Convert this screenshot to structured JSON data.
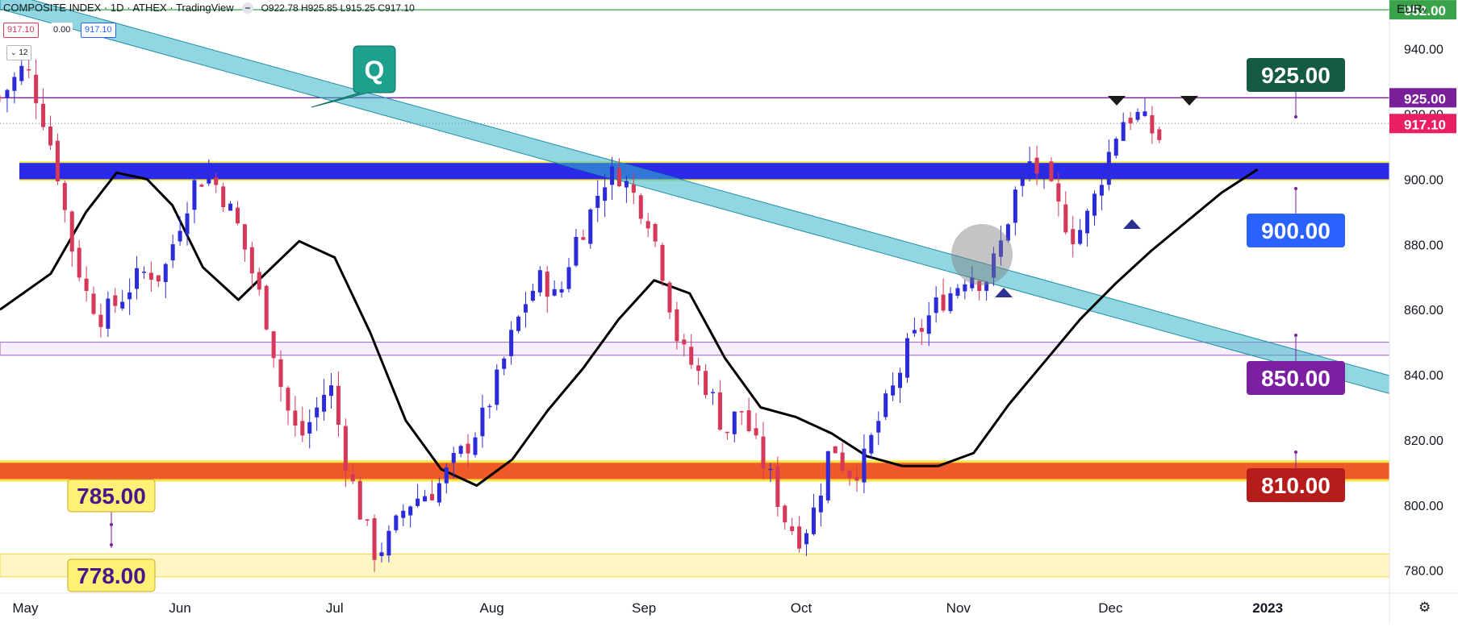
{
  "header": {
    "symbol": "COMPOSITE INDEX · 1D · ATHEX · TradingView",
    "ohlc": "O922.78 H925.85 L915.25 C917.10",
    "tag_left": "917.10",
    "tag_mid": "0.00",
    "tag_right": "917.10",
    "interval_badge": "12",
    "currency": "EUR"
  },
  "colors": {
    "up": "#2b2bd9",
    "down": "#d6385a",
    "channel": "#39b5c9",
    "blue_zone": "#2a2ae8",
    "red_zone": "#f05a2a",
    "yellow_zone": "#fff6c4",
    "purple_line": "#7a1f9a",
    "green_line": "#3aa34a"
  },
  "chart_data": {
    "type": "candlestick",
    "y_axis": {
      "range": [
        773,
        955
      ],
      "ticks": [
        "940.00",
        "920.00",
        "900.00",
        "880.00",
        "860.00",
        "840.00",
        "820.00",
        "800.00",
        "780.00"
      ],
      "tick_values": [
        940,
        920,
        900,
        880,
        860,
        840,
        820,
        800,
        780
      ]
    },
    "x_axis": {
      "labels": [
        "May",
        "Jun",
        "Jul",
        "Aug",
        "Sep",
        "Oct",
        "Nov",
        "Dec",
        "2023"
      ],
      "label_days": [
        0,
        30.5,
        61,
        92,
        122,
        153,
        184,
        214,
        245
      ],
      "range_days": [
        -5,
        269
      ]
    },
    "price_tags": [
      {
        "text": "952.00",
        "value": 952,
        "color": "#3aa34a"
      },
      {
        "text": "925.00",
        "value": 925,
        "color": "#7a1f9a"
      },
      {
        "text": "917.10",
        "value": 917.1,
        "color": "#e91e63"
      }
    ],
    "level_labels": [
      {
        "text": "925.00",
        "bg": "#155a45"
      },
      {
        "text": "900.00",
        "bg": "#2962ff"
      },
      {
        "text": "850.00",
        "bg": "#7b1fa2"
      },
      {
        "text": "810.00",
        "bg": "#b71c1c"
      },
      {
        "text": "785.00",
        "bg": "#fff176"
      },
      {
        "text": "778.00",
        "bg": "#fff176"
      }
    ],
    "annotation": "Q",
    "close_path_days": [
      -5,
      0,
      3,
      6,
      9,
      12,
      15,
      18,
      21,
      24,
      27,
      30,
      33,
      36,
      39,
      42,
      45,
      48,
      51,
      54,
      57,
      60,
      63,
      66,
      69,
      72,
      75,
      78,
      81,
      84,
      87,
      90,
      93,
      96,
      99,
      102,
      105,
      108,
      111,
      114,
      117,
      120,
      123,
      126,
      129,
      132,
      135,
      138,
      141,
      144,
      147,
      150,
      153,
      156,
      159,
      162,
      165,
      168,
      171,
      174,
      177,
      180,
      183,
      186,
      189,
      192,
      195,
      198,
      201,
      204,
      207,
      210,
      213,
      216,
      219,
      222,
      224
    ],
    "close_path_values": [
      925,
      935,
      922,
      905,
      880,
      865,
      858,
      862,
      868,
      872,
      870,
      885,
      898,
      902,
      895,
      885,
      870,
      855,
      832,
      820,
      828,
      838,
      815,
      798,
      785,
      790,
      800,
      803,
      805,
      812,
      818,
      826,
      838,
      852,
      864,
      870,
      862,
      880,
      888,
      900,
      902,
      895,
      888,
      870,
      848,
      842,
      835,
      822,
      830,
      818,
      808,
      795,
      790,
      800,
      820,
      810,
      812,
      825,
      835,
      848,
      855,
      862,
      866,
      872,
      868,
      878,
      895,
      905,
      900,
      890,
      882,
      890,
      905,
      918,
      920,
      915,
      912
    ],
    "moving_average_days": [
      -5,
      5,
      12,
      18,
      24,
      29,
      35,
      42,
      48,
      54,
      61,
      68,
      75,
      82,
      89,
      96,
      103,
      110,
      117,
      124,
      131,
      138,
      145,
      152,
      159,
      166,
      173,
      180,
      187,
      194,
      201,
      208,
      215,
      222,
      229,
      236,
      243
    ],
    "moving_average_values": [
      860,
      871,
      890,
      902,
      900,
      892,
      873,
      863,
      872,
      881,
      876,
      853,
      826,
      811,
      806,
      814,
      829,
      842,
      857,
      869,
      865,
      845,
      830,
      827,
      822,
      815,
      812,
      812,
      816,
      831,
      844,
      857,
      868,
      878,
      887,
      896,
      903
    ],
    "channel": {
      "start": [
        -5,
        955
      ],
      "end": [
        269,
        837
      ],
      "width": 5.5
    },
    "zones": [
      {
        "name": "blue",
        "from": 900,
        "to": 905
      },
      {
        "name": "red",
        "from": 808,
        "to": 813
      },
      {
        "name": "yellow",
        "from": 778,
        "to": 785
      },
      {
        "name": "purple-band",
        "from": 846,
        "to": 850
      }
    ],
    "lines": [
      {
        "name": "green",
        "value": 952
      },
      {
        "name": "purple",
        "value": 925
      },
      {
        "name": "last",
        "value": 917.1
      }
    ]
  }
}
